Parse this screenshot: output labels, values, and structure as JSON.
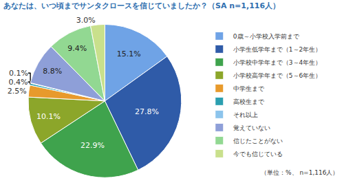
{
  "chart_data": {
    "type": "pie",
    "title": "あなたは、いつ頃までサンタクロースを信じていましたか？（SA n=1,116人）",
    "categories": [
      "0歳～小学校入学前まで",
      "小学生低学年まで（1～2年生）",
      "小学校中学年まで（3～4年生）",
      "小学校高学年まで（5～6年生）",
      "中学生まで",
      "高校生まで",
      "それ以上",
      "覚えていない",
      "信じたことがない",
      "今でも信じている"
    ],
    "values": [
      15.1,
      27.8,
      22.9,
      10.1,
      2.5,
      0.4,
      0.1,
      8.8,
      9.4,
      3.0
    ],
    "value_labels": [
      "15.1%",
      "27.8%",
      "22.9%",
      "10.1%",
      "2.5%",
      "0.4%",
      "0.1%",
      "8.8%",
      "9.4%",
      "3.0%"
    ],
    "colors": [
      "#6fa3e6",
      "#2f5ba8",
      "#3fa34d",
      "#8ca62a",
      "#e89a2c",
      "#2b9fb0",
      "#8cc4ec",
      "#8e9fd8",
      "#92d892",
      "#c9e08c"
    ],
    "data_labels": true,
    "legend": "right",
    "annotations": [
      "（単位：%、 n=1,116人）"
    ]
  }
}
